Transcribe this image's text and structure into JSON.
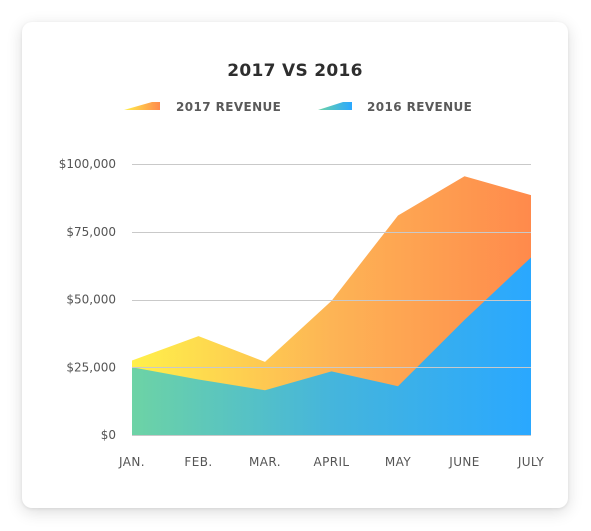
{
  "chart_data": {
    "type": "area",
    "title": "2017 VS 2016",
    "categories": [
      "JAN.",
      "FEB.",
      "MAR.",
      "APRIL",
      "MAY",
      "JUNE",
      "JULY"
    ],
    "series": [
      {
        "name": "2017 REVENUE",
        "values": [
          27500,
          36500,
          27000,
          49500,
          81000,
          95500,
          88500
        ],
        "gradient": [
          "#fff04a",
          "#fdb455",
          "#ff8a4c"
        ]
      },
      {
        "name": "2016 REVENUE",
        "values": [
          25000,
          20500,
          16500,
          23500,
          18000,
          42500,
          65500
        ],
        "gradient": [
          "#6dd3a5",
          "#45b5dc",
          "#2aa8ff"
        ]
      }
    ],
    "yticks": [
      "$0",
      "$25,000",
      "$50,000",
      "$75,000",
      "$100,000"
    ],
    "ytick_values": [
      0,
      25000,
      50000,
      75000,
      100000
    ],
    "ylim": [
      0,
      100000
    ],
    "xlabel": "",
    "ylabel": "",
    "grid": true,
    "legend": "top-center"
  }
}
